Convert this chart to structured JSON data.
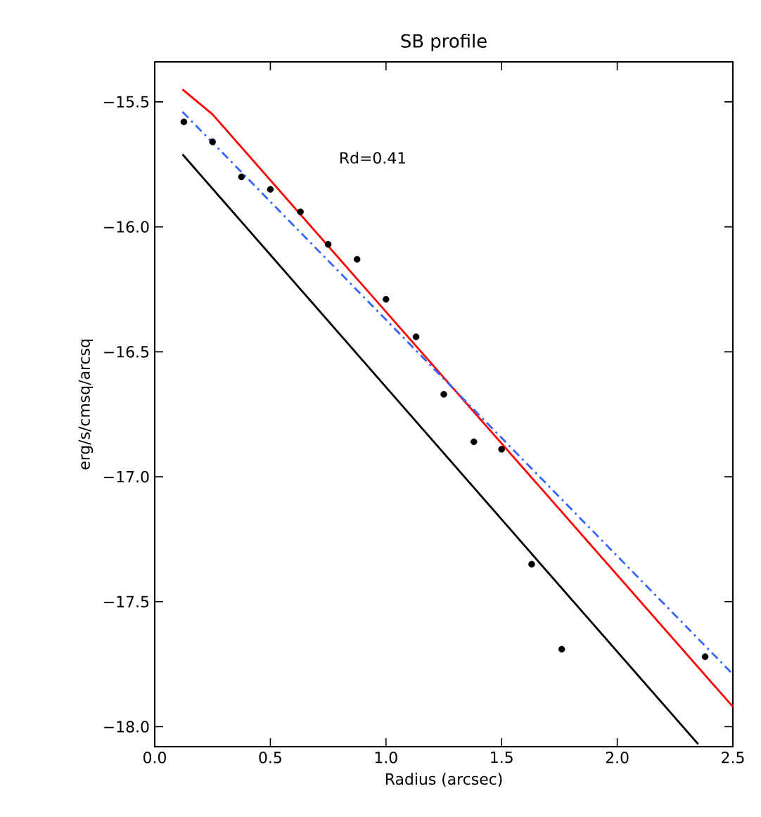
{
  "chart_data": {
    "type": "scatter",
    "title": "SB profile",
    "xlabel": "Radius (arcsec)",
    "ylabel": "erg/s/cmsq/arcsq",
    "xlim": [
      0.0,
      2.5
    ],
    "ylim": [
      -18.08,
      -15.34
    ],
    "xticks": [
      {
        "value": 0.0,
        "label": "0.0"
      },
      0.5,
      {
        "value": 1.0,
        "label": "1.0"
      },
      1.5,
      {
        "value": 2.0,
        "label": "2.0"
      },
      2.5
    ],
    "yticks": [
      {
        "value": -18.0,
        "label": "−18.0"
      },
      {
        "value": -17.5,
        "label": "−17.5"
      },
      {
        "value": -17.0,
        "label": "−17.0"
      },
      {
        "value": -16.5,
        "label": "−16.5"
      },
      {
        "value": -16.0,
        "label": "−16.0"
      },
      {
        "value": -15.5,
        "label": "−15.5"
      }
    ],
    "annotations": [
      "Rd=0.41"
    ],
    "grid": false,
    "series": [
      {
        "color": "#000000",
        "marker": "circle",
        "x": [
          0.126,
          0.25,
          0.375,
          0.5,
          0.63,
          0.75,
          0.875,
          1.0,
          1.13,
          1.25,
          1.38,
          1.5,
          1.63,
          1.76,
          2.38
        ],
        "values": [
          -15.58,
          -15.66,
          -15.8,
          -15.85,
          -15.94,
          -16.07,
          -16.13,
          -16.29,
          -16.44,
          -16.67,
          -16.86,
          -16.89,
          -17.35,
          -17.69,
          -17.72
        ]
      },
      {
        "type": "line",
        "color": "#ff0000",
        "line_style": "solid",
        "x": [
          0.12,
          0.25,
          2.5
        ],
        "values": [
          -15.45,
          -15.55,
          -17.92
        ]
      },
      {
        "type": "line",
        "color": "#3366ff",
        "line_style": "dashdot",
        "x": [
          0.12,
          2.5
        ],
        "values": [
          -15.54,
          -17.79
        ]
      },
      {
        "type": "line",
        "color": "#000000",
        "line_style": "solid",
        "x": [
          0.12,
          2.35
        ],
        "values": [
          -15.71,
          -18.07
        ]
      }
    ]
  }
}
